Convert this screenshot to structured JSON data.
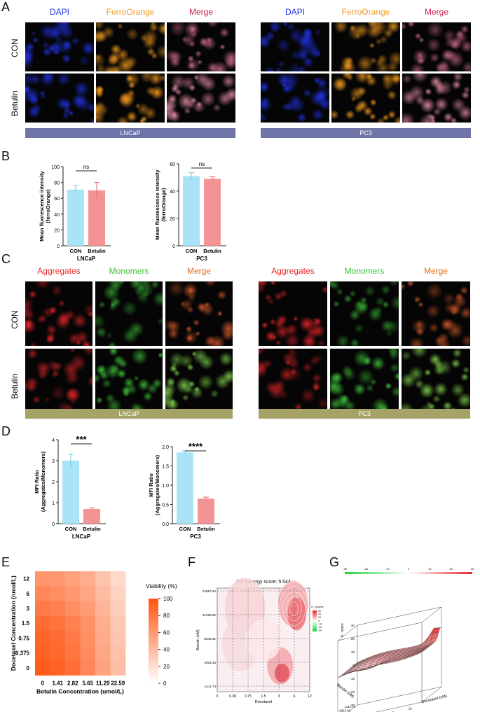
{
  "panels": {
    "A": "A",
    "B": "B",
    "C": "C",
    "D": "D",
    "E": "E",
    "F": "F",
    "G": "G"
  },
  "colors": {
    "dapi": "#2233ee",
    "ferro": "#f29a1e",
    "merge_a": "#cc1f4a",
    "aggregates": "#e8262a",
    "monomers": "#3fc23a",
    "merge_c": "#e36a1f",
    "bar_a": "#6f75a8",
    "bar_c": "#a6a368",
    "con_bar": "#a9e3f7",
    "bet_bar": "#f49396"
  },
  "panelA": {
    "col_headers": [
      "DAPI",
      "FerroOrange",
      "Merge"
    ],
    "row_labels": [
      "CON",
      "Betulin"
    ],
    "cell_lines": [
      "LNCaP",
      "PC3"
    ]
  },
  "panelC": {
    "col_headers": [
      "Aggregates",
      "Monomers",
      "Merge"
    ],
    "row_labels": [
      "CON",
      "Betulin"
    ],
    "cell_lines": [
      "LNCaP",
      "PC3"
    ]
  },
  "chart_data": [
    {
      "type": "bar",
      "panel": "B",
      "categories": [
        "CON",
        "Betulin"
      ],
      "values": [
        71,
        70
      ],
      "errors": [
        5,
        10
      ],
      "ylim": [
        0,
        100
      ],
      "yticks": [
        "0",
        "20",
        "40",
        "60",
        "80",
        "100"
      ],
      "ylabel": "Mean fluorescence intensity (ferroOrange)",
      "xlabel": "LNCaP",
      "significance": "ns"
    },
    {
      "type": "bar",
      "panel": "B",
      "categories": [
        "CON",
        "Betulin"
      ],
      "values": [
        51,
        49
      ],
      "errors": [
        2.5,
        1.5
      ],
      "ylim": [
        0,
        60
      ],
      "yticks": [
        "0",
        "20",
        "40",
        "60"
      ],
      "ylabel": "Mean fluorescence intensity (ferroOrange)",
      "xlabel": "PC3",
      "significance": "ns"
    },
    {
      "type": "bar",
      "panel": "D",
      "categories": [
        "CON",
        "Betulin"
      ],
      "values": [
        3.0,
        0.7
      ],
      "errors": [
        0.3,
        0.05
      ],
      "ylim": [
        0,
        4
      ],
      "yticks": [
        "0",
        "1",
        "2",
        "3",
        "4"
      ],
      "ylabel": "MFI Ratio (Aggregates/Monomers)",
      "xlabel": "LNCaP",
      "significance": "***"
    },
    {
      "type": "bar",
      "panel": "D",
      "categories": [
        "CON",
        "Betulin"
      ],
      "values": [
        1.85,
        0.65
      ],
      "errors": [
        0.04,
        0.04
      ],
      "ylim": [
        0,
        2.0
      ],
      "yticks": [
        "0.0",
        "0.5",
        "1.0",
        "1.5",
        "2.0"
      ],
      "ylabel": "MFI Ratio (Aggregates/Monomers)",
      "xlabel": "PC3",
      "significance": "****"
    },
    {
      "type": "heatmap",
      "panel": "E",
      "x_labels": [
        "0",
        "1.41",
        "2.82",
        "5.65",
        "11.29",
        "22.59"
      ],
      "y_labels": [
        "12",
        "6",
        "3",
        "1.5",
        "0.75",
        "0.375",
        "0"
      ],
      "xlabel": "Betulin Concentration (umol/L)",
      "ylabel": "Docetaxel Concentration (nmol/L)",
      "values": [
        [
          62,
          60,
          55,
          48,
          35,
          22
        ],
        [
          70,
          66,
          60,
          52,
          40,
          26
        ],
        [
          78,
          74,
          66,
          58,
          44,
          28
        ],
        [
          86,
          82,
          74,
          64,
          48,
          32
        ],
        [
          90,
          86,
          78,
          66,
          50,
          34
        ],
        [
          93,
          88,
          80,
          68,
          52,
          36
        ],
        [
          96,
          92,
          84,
          70,
          54,
          38
        ]
      ],
      "colorbar": {
        "label": "Viability (%)",
        "ticks": [
          "0",
          "20",
          "40",
          "60",
          "80",
          "100"
        ],
        "range": [
          0,
          100
        ]
      }
    },
    {
      "type": "heatmap",
      "panel": "F",
      "title": "ZIP synergy score: 5.544",
      "x_labels": [
        "0",
        "0.38",
        "0.75",
        "1.5",
        "3",
        "6",
        "12"
      ],
      "y_labels": [
        "22587.64",
        "11293.82",
        "5646.91",
        "2823.46",
        "1411.73"
      ],
      "xlabel": "Docetaxel",
      "ylabel": "Betulin (nM)",
      "legend_title": "δ - scores",
      "legend_ticks": [
        "30",
        "20",
        "10",
        "0",
        "-10",
        "-20",
        "-30"
      ]
    },
    {
      "type": "area",
      "panel": "G",
      "zlabel": "δ - score",
      "zticks": [
        "30",
        "20",
        "10",
        "0",
        "-10",
        "-20",
        "-30"
      ],
      "xlabel": "Docetaxel (nM)",
      "x_ticks": [
        "0.38",
        "0.75",
        "3",
        "6",
        "12"
      ],
      "ylabel": "Betulin (nM)",
      "y_ticks": [
        "22587.64",
        "11293.82",
        "5646.91",
        "2823.46",
        "1411.73"
      ],
      "colorbar_ticks": [
        "-30",
        "-20",
        "-10",
        "0",
        "10",
        "20",
        "30"
      ]
    }
  ]
}
